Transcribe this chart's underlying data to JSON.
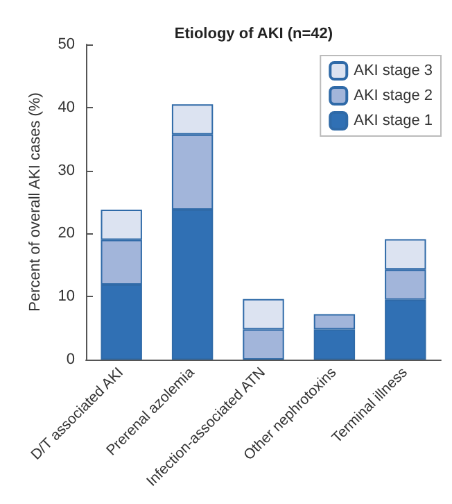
{
  "chart_data": {
    "type": "bar",
    "title": "Etiology of AKI (n=42)",
    "ylabel": "Percent of overall AKI cases (%)",
    "categories": [
      "D/T associated AKI",
      "Prerenal azolemia",
      "Infection-associated ATN",
      "Other nephrotoxins",
      "Terminal illness"
    ],
    "stacked": true,
    "ylim": [
      0,
      50
    ],
    "yticks": [
      0,
      10,
      20,
      30,
      40,
      50
    ],
    "grid": false,
    "legend": "top right",
    "series": [
      {
        "name": "AKI stage 1",
        "color": "#3070b4",
        "values": [
          11.9,
          23.8,
          0,
          4.8,
          9.5
        ]
      },
      {
        "name": "AKI stage 2",
        "color": "#a2b5da",
        "values": [
          7.1,
          11.9,
          4.8,
          2.4,
          4.8
        ]
      },
      {
        "name": "AKI stage 3",
        "color": "#dce3f1",
        "values": [
          4.8,
          4.8,
          4.8,
          0,
          4.8
        ]
      }
    ]
  }
}
